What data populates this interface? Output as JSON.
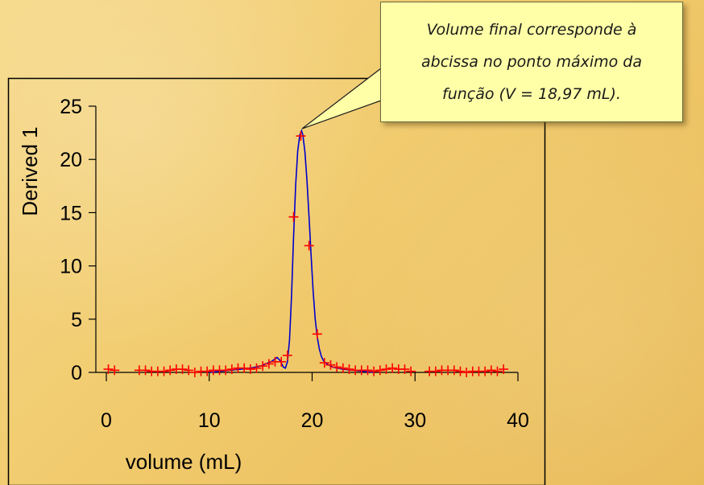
{
  "colors": {
    "marker": "#ff0000",
    "curve": "#0000cc",
    "axis": "#000000",
    "frame": "#000000",
    "callout_bg": "#ffffa8"
  },
  "callout": {
    "line1": "Volume final corresponde à",
    "line2": "abcissa no ponto máximo da",
    "line3": "função (V = 18,97 mL)."
  },
  "chart_data": {
    "type": "scatter",
    "title": "",
    "xlabel": "volume (mL)",
    "ylabel": "Derived 1",
    "xlim": [
      0,
      40
    ],
    "ylim": [
      0,
      25
    ],
    "xticks": [
      0,
      10,
      20,
      30,
      40
    ],
    "yticks": [
      0,
      5,
      10,
      15,
      20,
      25
    ],
    "x_tick_labels": [
      "0",
      "10",
      "20",
      "30",
      "40"
    ],
    "y_tick_labels": [
      "0",
      "5",
      "10",
      "15",
      "20",
      "25"
    ],
    "grid": false,
    "legend": "none",
    "series": [
      {
        "kind": "markers",
        "marker": "+",
        "x": [
          0.2,
          0.8,
          3.2,
          3.8,
          4.4,
          5.0,
          5.6,
          6.2,
          6.8,
          7.4,
          8.0,
          8.6,
          9.2,
          9.8,
          10.4,
          11.0,
          11.6,
          12.2,
          12.8,
          13.4,
          14.0,
          14.6,
          15.2,
          15.8,
          16.4,
          17.0,
          17.6,
          18.2,
          18.9,
          19.7,
          20.5,
          21.2,
          21.8,
          22.4,
          23.0,
          23.6,
          24.2,
          24.8,
          25.4,
          26.0,
          26.6,
          27.2,
          27.8,
          28.4,
          29.0,
          29.6,
          31.4,
          32.0,
          32.6,
          33.2,
          33.8,
          34.4,
          35.0,
          35.6,
          36.2,
          36.8,
          37.4,
          38.0,
          38.6
        ],
        "y": [
          0.3,
          0.2,
          0.2,
          0.2,
          0.1,
          0.1,
          0.1,
          0.2,
          0.3,
          0.3,
          0.2,
          0.0,
          0.1,
          0.1,
          0.2,
          0.2,
          0.2,
          0.3,
          0.4,
          0.4,
          0.3,
          0.4,
          0.6,
          0.8,
          1.0,
          1.0,
          1.6,
          14.6,
          22.2,
          11.9,
          3.6,
          0.9,
          0.7,
          0.5,
          0.4,
          0.3,
          0.2,
          0.2,
          0.2,
          0.1,
          0.2,
          0.3,
          0.4,
          0.3,
          0.3,
          0.1,
          0.1,
          0.1,
          0.2,
          0.2,
          0.2,
          0.1,
          0.0,
          0.1,
          0.1,
          0.1,
          0.2,
          0.1,
          0.3
        ]
      },
      {
        "kind": "curve",
        "x": [
          10.0,
          12.0,
          13.0,
          14.0,
          14.5,
          15.0,
          15.5,
          16.0,
          16.3,
          16.6,
          16.9,
          17.2,
          17.4,
          17.6,
          17.8,
          18.0,
          18.2,
          18.4,
          18.6,
          18.8,
          18.97,
          19.1,
          19.3,
          19.5,
          19.7,
          19.9,
          20.1,
          20.3,
          20.5,
          20.7,
          20.9,
          21.1,
          21.3,
          21.6,
          22.0,
          22.5,
          23.0,
          24.0,
          26.0
        ],
        "y": [
          0.0,
          0.2,
          0.3,
          0.4,
          0.5,
          0.6,
          0.8,
          1.0,
          1.2,
          1.4,
          1.1,
          0.5,
          0.4,
          1.0,
          3.0,
          7.2,
          12.8,
          17.6,
          20.8,
          22.3,
          22.7,
          22.3,
          20.7,
          18.0,
          14.6,
          11.0,
          7.6,
          5.0,
          3.3,
          2.2,
          1.5,
          1.1,
          0.9,
          0.7,
          0.5,
          0.4,
          0.3,
          0.2,
          0.0
        ]
      }
    ]
  }
}
